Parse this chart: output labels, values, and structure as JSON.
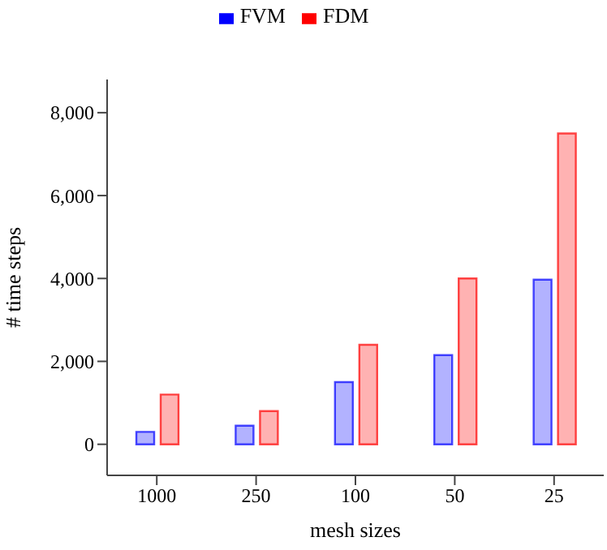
{
  "chart_data": {
    "type": "bar",
    "xlabel": "mesh sizes",
    "ylabel": "# time steps",
    "categories": [
      "1000",
      "250",
      "100",
      "50",
      "25"
    ],
    "series": [
      {
        "name": "FVM",
        "color": "#0000ff",
        "values": [
          300,
          450,
          1500,
          2150,
          3970
        ]
      },
      {
        "name": "FDM",
        "color": "#ff0000",
        "values": [
          1200,
          800,
          2400,
          4000,
          7500
        ]
      }
    ],
    "ylim": [
      -750,
      8800
    ],
    "yticks": [
      0,
      {
        "value": 2000,
        "label": "2,000"
      },
      {
        "value": 4000,
        "label": "4,000"
      },
      {
        "value": 6000,
        "label": "6,000"
      },
      {
        "value": 8000,
        "label": "8,000"
      }
    ],
    "legend": "top",
    "grid": false
  }
}
